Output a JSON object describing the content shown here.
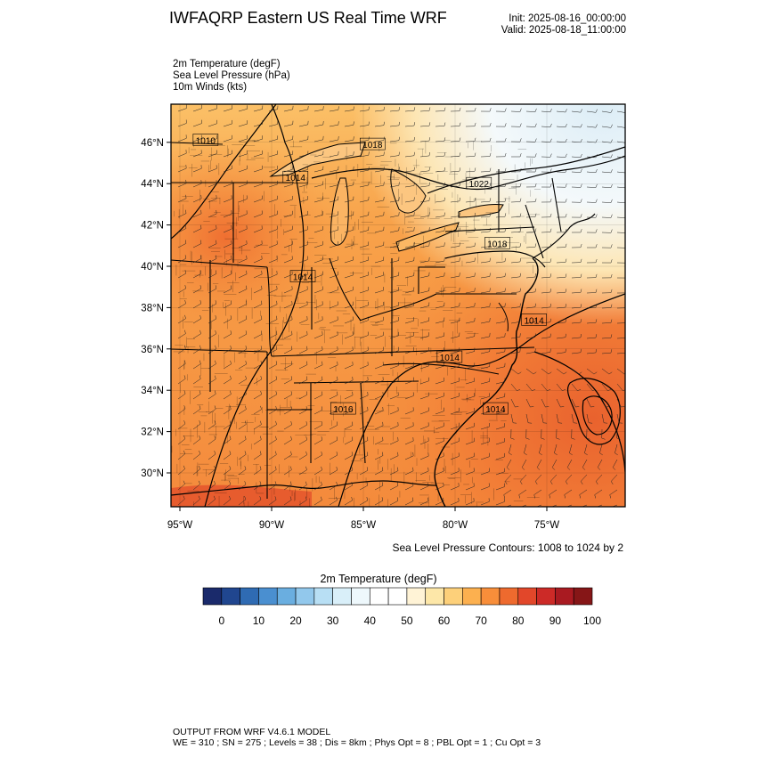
{
  "header": {
    "title": "IWFAQRP Eastern US Real Time WRF",
    "init": "Init: 2025-08-16_00:00:00",
    "valid": "Valid: 2025-08-18_11:00:00"
  },
  "fields": [
    "2m Temperature   (degF)",
    "Sea Level Pressure   (hPa)",
    "10m Winds   (kts)"
  ],
  "map": {
    "lat_ticks": [
      {
        "lat": 46,
        "label": "46°N"
      },
      {
        "lat": 44,
        "label": "44°N"
      },
      {
        "lat": 42,
        "label": "42°N"
      },
      {
        "lat": 40,
        "label": "40°N"
      },
      {
        "lat": 38,
        "label": "38°N"
      },
      {
        "lat": 36,
        "label": "36°N"
      },
      {
        "lat": 34,
        "label": "34°N"
      },
      {
        "lat": 32,
        "label": "32°N"
      },
      {
        "lat": 30,
        "label": "30°N"
      }
    ],
    "lon_ticks": [
      {
        "lon": -95,
        "label": "95°W"
      },
      {
        "lon": -90,
        "label": "90°W"
      },
      {
        "lon": -85,
        "label": "85°W"
      },
      {
        "lon": -80,
        "label": "80°W"
      },
      {
        "lon": -75,
        "label": "75°W"
      }
    ],
    "pressure_labels": [
      {
        "text": "1010",
        "lon": -93.6,
        "lat": 46.1
      },
      {
        "text": "1018",
        "lon": -84.5,
        "lat": 45.9
      },
      {
        "text": "1014",
        "lon": -88.7,
        "lat": 44.3
      },
      {
        "text": "1022",
        "lon": -78.7,
        "lat": 44.0
      },
      {
        "text": "1018",
        "lon": -77.7,
        "lat": 41.1
      },
      {
        "text": "1014",
        "lon": -88.3,
        "lat": 39.5
      },
      {
        "text": "1014",
        "lon": -75.7,
        "lat": 37.4
      },
      {
        "text": "1014",
        "lon": -80.3,
        "lat": 35.6
      },
      {
        "text": "1014",
        "lon": -77.8,
        "lat": 33.1
      },
      {
        "text": "1016",
        "lon": -86.1,
        "lat": 33.1
      }
    ]
  },
  "contour_note": "Sea Level Pressure Contours: 1008 to 1024 by 2",
  "colorbar": {
    "title": "2m Temperature  (degF)",
    "colors": [
      "#1a2a6b",
      "#20468f",
      "#2f6bb3",
      "#4a8fd0",
      "#6aaee0",
      "#92c8ec",
      "#b8dff4",
      "#d9eff9",
      "#eef8fc",
      "#ffffff",
      "#ffffff",
      "#fff3d6",
      "#fde7a8",
      "#fdd07a",
      "#fcb04f",
      "#f88e3a",
      "#ee6a2e",
      "#e2472a",
      "#cc2a27",
      "#a91a21",
      "#861617"
    ],
    "labels": [
      "0",
      "10",
      "20",
      "30",
      "40",
      "50",
      "60",
      "70",
      "80",
      "90",
      "100"
    ]
  },
  "footer": {
    "line1": "OUTPUT FROM WRF V4.6.1 MODEL",
    "line2": "WE = 310 ; SN = 275 ; Levels = 38 ; Dis = 8km ; Phys Opt = 8 ; PBL Opt = 1 ; Cu Opt = 3"
  }
}
